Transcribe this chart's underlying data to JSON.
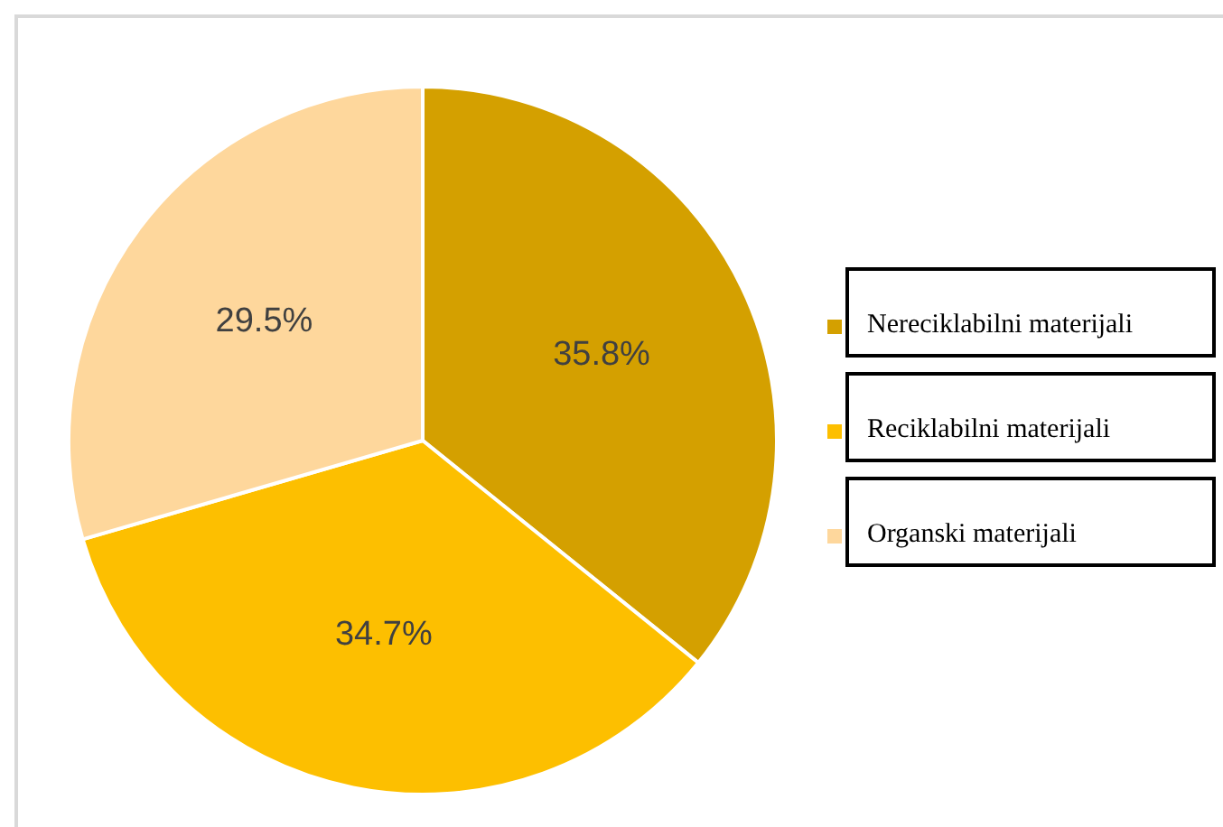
{
  "chart_data": {
    "type": "pie",
    "categories": [
      "Nereciklabilni materijali",
      "Reciklabilni materijali",
      "Organski materijali"
    ],
    "values": [
      35.8,
      34.7,
      29.5
    ],
    "colors": [
      "#d4a000",
      "#fdbf00",
      "#fed79c"
    ],
    "value_labels": [
      "35.8%",
      "34.7%",
      "29.5%"
    ],
    "legend": "right"
  }
}
